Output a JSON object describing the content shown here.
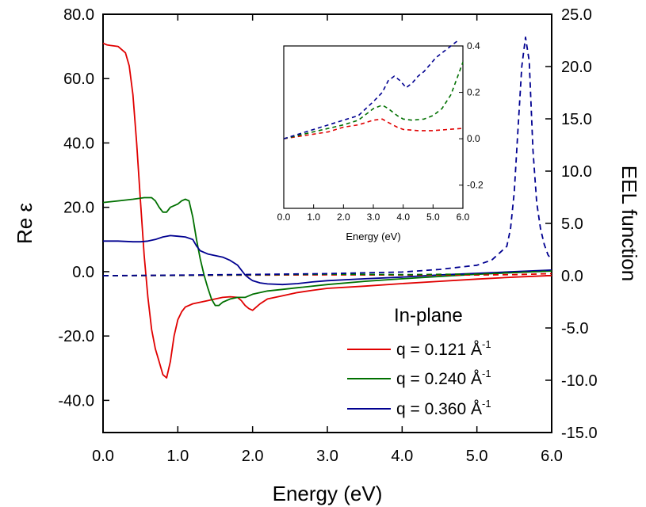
{
  "chart_data": {
    "type": "line",
    "xlabel": "Energy (eV)",
    "ylabel": "Re ε",
    "y2label": "EEL function",
    "xlim": [
      0.0,
      6.0
    ],
    "ylim": [
      -50.0,
      80.0
    ],
    "y2lim": [
      -15.0,
      25.0
    ],
    "xticks": [
      "0.0",
      "1.0",
      "2.0",
      "3.0",
      "4.0",
      "5.0",
      "6.0"
    ],
    "yticks": [
      "80.0",
      "60.0",
      "40.0",
      "20.0",
      "0.0",
      "-20.0",
      "-40.0"
    ],
    "y2ticks": [
      "25.0",
      "20.0",
      "15.0",
      "10.0",
      "5.0",
      "0.0",
      "-5.0",
      "-10.0",
      "-15.0"
    ],
    "legend": {
      "title": "In-plane",
      "position": "lower-right",
      "entries": [
        {
          "prefix": "q = 0.121 Å",
          "sup": "-1",
          "color": "#e00000"
        },
        {
          "prefix": "q = 0.240 Å",
          "sup": "-1",
          "color": "#007000"
        },
        {
          "prefix": "q = 0.360 Å",
          "sup": "-1",
          "color": "#000090"
        }
      ]
    },
    "series": [
      {
        "name": "Re ε, q = 0.121",
        "axis": "left",
        "style": "solid",
        "color": "#e00000",
        "x": [
          0.0,
          0.05,
          0.1,
          0.2,
          0.3,
          0.35,
          0.4,
          0.45,
          0.5,
          0.55,
          0.6,
          0.65,
          0.7,
          0.75,
          0.8,
          0.85,
          0.9,
          0.95,
          1.0,
          1.05,
          1.1,
          1.2,
          1.3,
          1.4,
          1.5,
          1.6,
          1.7,
          1.8,
          1.85,
          1.9,
          1.95,
          2.0,
          2.05,
          2.1,
          2.2,
          2.4,
          2.6,
          2.8,
          3.0,
          3.5,
          4.0,
          4.5,
          5.0,
          5.5,
          6.0
        ],
        "y": [
          71.0,
          70.5,
          70.3,
          70.0,
          68.0,
          64.0,
          55.0,
          40.0,
          22.0,
          5.0,
          -8.0,
          -18.0,
          -24.0,
          -28.0,
          -32.0,
          -33.0,
          -28.0,
          -20.0,
          -15.0,
          -12.5,
          -11.0,
          -10.0,
          -9.5,
          -9.0,
          -8.5,
          -8.0,
          -7.8,
          -8.0,
          -9.0,
          -10.5,
          -11.5,
          -12.0,
          -11.0,
          -10.0,
          -8.5,
          -7.5,
          -6.5,
          -5.8,
          -5.2,
          -4.5,
          -3.7,
          -3.0,
          -2.3,
          -1.7,
          -1.2
        ]
      },
      {
        "name": "Re ε, q = 0.240",
        "axis": "left",
        "style": "solid",
        "color": "#007000",
        "x": [
          0.0,
          0.2,
          0.4,
          0.55,
          0.65,
          0.7,
          0.75,
          0.8,
          0.85,
          0.9,
          1.0,
          1.05,
          1.1,
          1.15,
          1.2,
          1.25,
          1.3,
          1.35,
          1.4,
          1.45,
          1.5,
          1.55,
          1.6,
          1.7,
          1.8,
          1.9,
          2.0,
          2.2,
          2.4,
          2.6,
          3.0,
          3.5,
          4.0,
          4.5,
          5.0,
          5.5,
          6.0
        ],
        "y": [
          21.5,
          22.0,
          22.5,
          23.0,
          23.0,
          22.0,
          20.0,
          18.5,
          18.5,
          20.0,
          21.0,
          22.0,
          22.5,
          22.0,
          17.0,
          10.0,
          4.0,
          -1.0,
          -5.0,
          -8.5,
          -10.5,
          -10.5,
          -9.5,
          -8.5,
          -8.0,
          -8.0,
          -7.0,
          -6.0,
          -5.5,
          -5.0,
          -4.0,
          -3.0,
          -2.2,
          -1.5,
          -0.8,
          -0.3,
          0.2
        ]
      },
      {
        "name": "Re ε, q = 0.360",
        "axis": "left",
        "style": "solid",
        "color": "#000090",
        "x": [
          0.0,
          0.2,
          0.4,
          0.5,
          0.6,
          0.7,
          0.8,
          0.9,
          1.0,
          1.1,
          1.2,
          1.25,
          1.3,
          1.4,
          1.5,
          1.6,
          1.7,
          1.8,
          1.85,
          1.9,
          1.95,
          2.0,
          2.1,
          2.2,
          2.4,
          2.6,
          2.8,
          3.0,
          3.5,
          4.0,
          4.5,
          5.0,
          5.5,
          6.0
        ],
        "y": [
          9.5,
          9.5,
          9.3,
          9.3,
          9.5,
          10.0,
          10.8,
          11.2,
          11.0,
          10.8,
          10.0,
          8.0,
          6.5,
          5.5,
          5.0,
          4.5,
          3.5,
          2.0,
          0.5,
          -1.0,
          -2.0,
          -2.8,
          -3.5,
          -3.8,
          -4.0,
          -3.7,
          -3.2,
          -2.8,
          -2.2,
          -1.7,
          -1.0,
          -0.5,
          0.0,
          0.5
        ]
      },
      {
        "name": "EEL, q = 0.121",
        "axis": "right",
        "style": "dashed",
        "color": "#e00000",
        "x": [
          0.0,
          1.0,
          2.0,
          3.0,
          4.0,
          5.0,
          5.5,
          6.0
        ],
        "y": [
          0.0,
          0.02,
          0.05,
          0.08,
          0.06,
          0.07,
          0.1,
          0.2
        ]
      },
      {
        "name": "EEL, q = 0.240",
        "axis": "right",
        "style": "dashed",
        "color": "#007000",
        "x": [
          0.0,
          1.0,
          2.0,
          3.0,
          4.0,
          5.0,
          5.5,
          6.0
        ],
        "y": [
          0.0,
          0.03,
          0.08,
          0.15,
          0.1,
          0.15,
          0.3,
          0.45
        ]
      },
      {
        "name": "EEL, q = 0.360",
        "axis": "right",
        "style": "dashed",
        "color": "#000090",
        "x": [
          0.0,
          1.0,
          2.0,
          3.0,
          4.0,
          4.5,
          5.0,
          5.2,
          5.4,
          5.45,
          5.5,
          5.55,
          5.6,
          5.65,
          5.7,
          5.75,
          5.8,
          5.85,
          5.9,
          5.95,
          6.0
        ],
        "y": [
          0.0,
          0.05,
          0.12,
          0.2,
          0.35,
          0.6,
          1.0,
          1.5,
          2.8,
          4.5,
          8.0,
          14.0,
          20.0,
          22.8,
          20.5,
          12.0,
          7.0,
          4.5,
          3.0,
          2.0,
          1.5
        ]
      }
    ],
    "inset": {
      "xlabel": "Energy (eV)",
      "xlim": [
        0.0,
        6.0
      ],
      "ylim": [
        -0.3,
        0.4
      ],
      "xticks": [
        "0.0",
        "1.0",
        "2.0",
        "3.0",
        "4.0",
        "5.0",
        "6.0"
      ],
      "yticks": [
        "0.4",
        "0.2",
        "0.0",
        "-0.2"
      ],
      "series": [
        {
          "name": "EEL inset, q = 0.121",
          "style": "dashed",
          "color": "#e00000",
          "x": [
            0.0,
            0.5,
            1.0,
            1.5,
            2.0,
            2.5,
            3.0,
            3.3,
            3.5,
            3.8,
            4.0,
            4.5,
            5.0,
            5.5,
            6.0
          ],
          "y": [
            0.0,
            0.01,
            0.02,
            0.03,
            0.05,
            0.06,
            0.08,
            0.085,
            0.07,
            0.05,
            0.04,
            0.035,
            0.035,
            0.04,
            0.045
          ]
        },
        {
          "name": "EEL inset, q = 0.240",
          "style": "dashed",
          "color": "#007000",
          "x": [
            0.0,
            0.5,
            1.0,
            1.5,
            2.0,
            2.5,
            3.0,
            3.3,
            3.5,
            3.8,
            4.0,
            4.3,
            4.7,
            5.0,
            5.3,
            5.6,
            5.8,
            6.0
          ],
          "y": [
            0.0,
            0.015,
            0.03,
            0.045,
            0.06,
            0.08,
            0.13,
            0.145,
            0.13,
            0.1,
            0.085,
            0.08,
            0.085,
            0.1,
            0.13,
            0.19,
            0.26,
            0.33
          ]
        },
        {
          "name": "EEL inset, q = 0.360",
          "style": "dashed",
          "color": "#000090",
          "x": [
            0.0,
            0.5,
            1.0,
            1.5,
            2.0,
            2.5,
            3.0,
            3.3,
            3.5,
            3.7,
            3.9,
            4.1,
            4.3,
            4.5,
            4.7,
            4.9,
            5.1,
            5.4,
            5.6,
            5.8
          ],
          "y": [
            0.0,
            0.02,
            0.04,
            0.06,
            0.08,
            0.1,
            0.16,
            0.2,
            0.25,
            0.27,
            0.25,
            0.22,
            0.24,
            0.27,
            0.29,
            0.32,
            0.35,
            0.38,
            0.4,
            0.42
          ]
        }
      ]
    }
  }
}
